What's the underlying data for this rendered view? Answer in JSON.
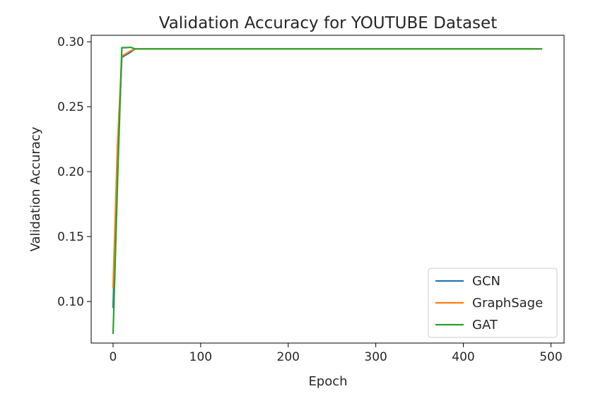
{
  "chart_data": {
    "type": "line",
    "title": "Validation Accuracy for YOUTUBE Dataset",
    "xlabel": "Epoch",
    "ylabel": "Validation Accuracy",
    "xlim": [
      -25,
      515
    ],
    "ylim": [
      0.068,
      0.305
    ],
    "xticks": [
      0,
      100,
      200,
      300,
      400,
      500
    ],
    "yticks": [
      0.1,
      0.15,
      0.2,
      0.25,
      0.3
    ],
    "xtick_labels": [
      "0",
      "100",
      "200",
      "300",
      "400",
      "500"
    ],
    "ytick_labels": [
      "0.10",
      "0.15",
      "0.20",
      "0.25",
      "0.30"
    ],
    "legend_position": "lower-right",
    "grid": false,
    "series": [
      {
        "name": "GCN",
        "color": "#1f77b4",
        "x": [
          0,
          5,
          10,
          15,
          20,
          25,
          490
        ],
        "y": [
          0.095,
          0.21,
          0.288,
          0.29,
          0.292,
          0.2945,
          0.2945
        ]
      },
      {
        "name": "GraphSage",
        "color": "#ff7f0e",
        "x": [
          0,
          5,
          10,
          15,
          20,
          25,
          490
        ],
        "y": [
          0.11,
          0.22,
          0.289,
          0.291,
          0.293,
          0.2945,
          0.2945
        ]
      },
      {
        "name": "GAT",
        "color": "#2ca02c",
        "x": [
          0,
          5,
          10,
          15,
          20,
          25,
          490
        ],
        "y": [
          0.075,
          0.19,
          0.2955,
          0.2955,
          0.2958,
          0.2945,
          0.2945
        ]
      }
    ]
  }
}
